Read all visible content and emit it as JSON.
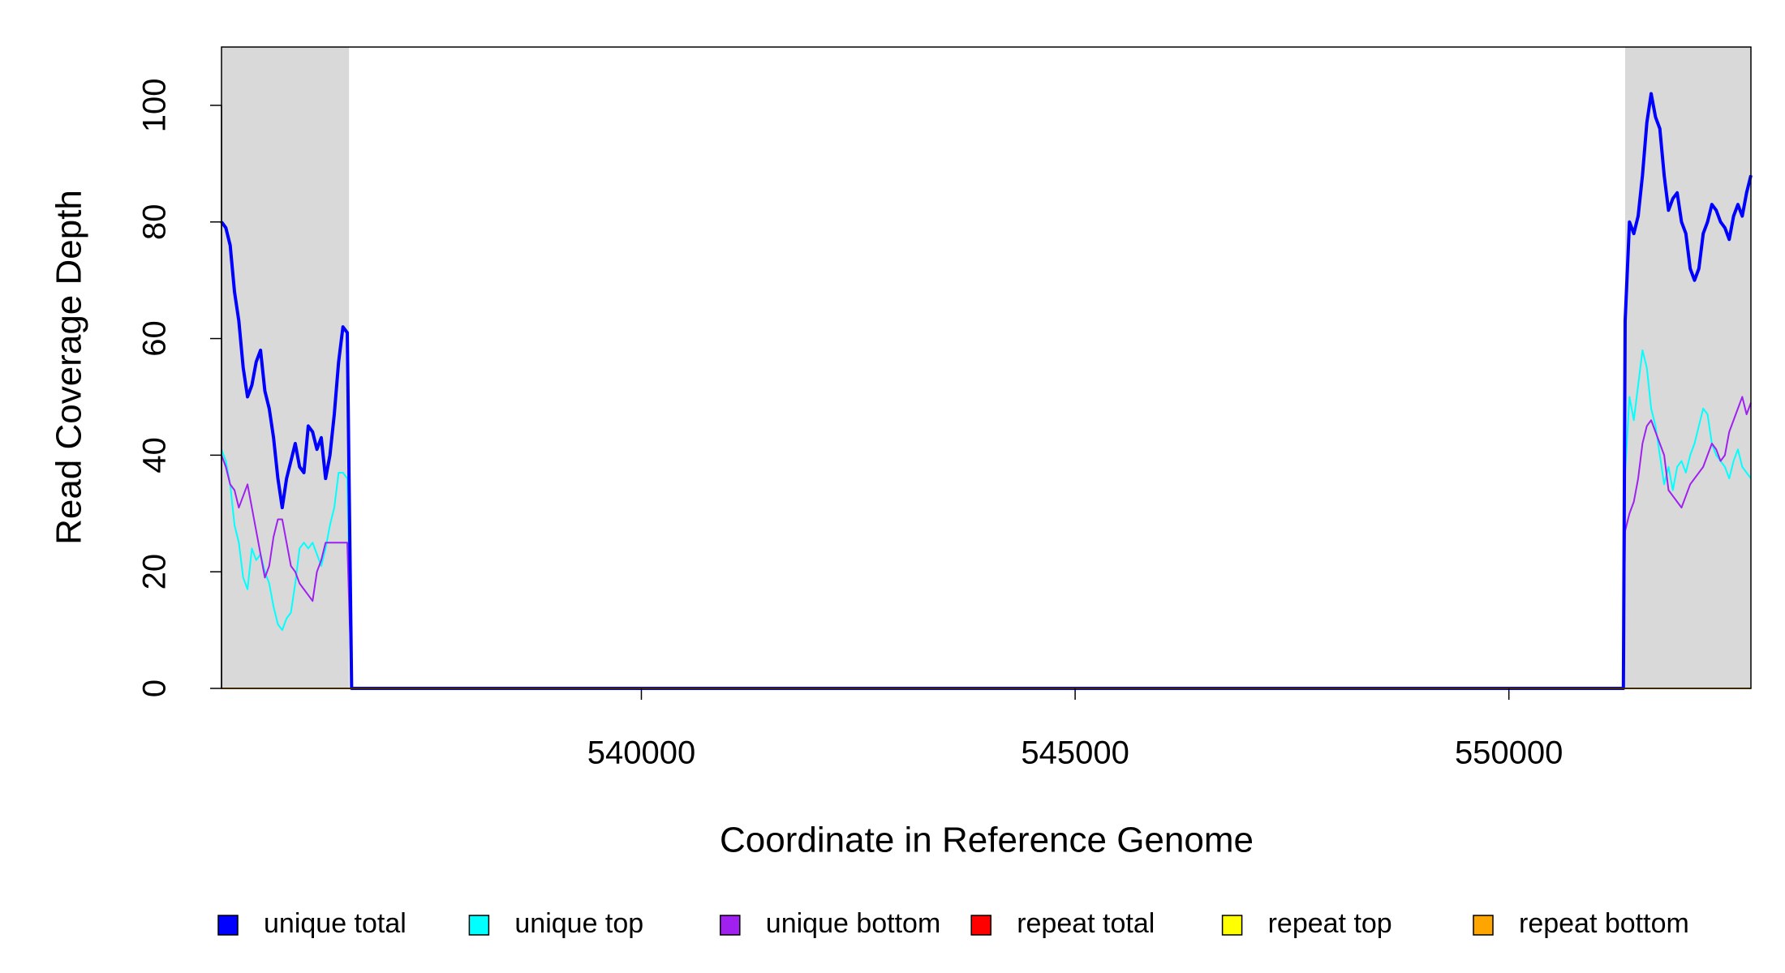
{
  "chart_data": {
    "type": "line",
    "x_label": "Coordinate in Reference Genome",
    "y_label": "Read Coverage Depth",
    "xlim": [
      535160,
      552790
    ],
    "ylim": [
      0,
      110
    ],
    "xticks": [
      540000,
      545000,
      550000
    ],
    "yticks": [
      0,
      20,
      40,
      60,
      80,
      100
    ],
    "shaded_regions": [
      [
        535160,
        536630
      ],
      [
        551340,
        552790
      ]
    ],
    "shade_color": "#d9d9d9",
    "legend": "bottom",
    "x": [
      535160,
      535210,
      535260,
      535310,
      535360,
      535410,
      535460,
      535510,
      535560,
      535610,
      535660,
      535710,
      535760,
      535810,
      535860,
      535910,
      535960,
      536010,
      536060,
      536110,
      536160,
      536210,
      536260,
      536310,
      536360,
      536410,
      536460,
      536510,
      536560,
      536610,
      536660,
      551320,
      551340,
      551390,
      551440,
      551490,
      551540,
      551590,
      551640,
      551690,
      551740,
      551790,
      551840,
      551890,
      551940,
      551990,
      552040,
      552090,
      552140,
      552190,
      552240,
      552290,
      552340,
      552390,
      552440,
      552490,
      552540,
      552590,
      552640,
      552690,
      552740,
      552790
    ],
    "series": [
      {
        "name": "unique total",
        "color": "#0000ff",
        "values": [
          80,
          79,
          76,
          68,
          63,
          55,
          50,
          52,
          56,
          58,
          51,
          48,
          43,
          36,
          31,
          36,
          39,
          42,
          38,
          37,
          45,
          44,
          41,
          43,
          36,
          40,
          47,
          56,
          62,
          61,
          0,
          0,
          63,
          80,
          78,
          81,
          88,
          97,
          102,
          98,
          96,
          88,
          82,
          84,
          85,
          80,
          78,
          72,
          70,
          72,
          78,
          80,
          83,
          82,
          80,
          79,
          77,
          81,
          83,
          81,
          85,
          88
        ]
      },
      {
        "name": "unique top",
        "color": "#00ffff",
        "values": [
          41,
          39,
          35,
          28,
          25,
          19,
          17,
          24,
          22,
          23,
          20,
          18,
          14,
          11,
          10,
          12,
          13,
          18,
          24,
          25,
          24,
          25,
          23,
          21,
          24,
          28,
          31,
          37,
          37,
          36,
          0,
          0,
          37,
          50,
          46,
          52,
          58,
          55,
          48,
          45,
          40,
          35,
          38,
          34,
          38,
          39,
          37,
          40,
          42,
          45,
          48,
          47,
          42,
          40,
          39,
          38,
          36,
          39,
          41,
          38,
          37,
          36
        ]
      },
      {
        "name": "unique bottom",
        "color": "#a020f0",
        "values": [
          40,
          38,
          35,
          34,
          31,
          33,
          35,
          31,
          27,
          23,
          19,
          21,
          26,
          29,
          29,
          25,
          21,
          20,
          18,
          17,
          16,
          15,
          20,
          22,
          25,
          25,
          25,
          25,
          25,
          25,
          0,
          0,
          27,
          30,
          32,
          36,
          42,
          45,
          46,
          44,
          42,
          40,
          34,
          33,
          32,
          31,
          33,
          35,
          36,
          37,
          38,
          40,
          42,
          41,
          39,
          40,
          44,
          46,
          48,
          50,
          47,
          49
        ]
      },
      {
        "name": "repeat total",
        "color": "#ff0000",
        "values": [
          0,
          0,
          0,
          0,
          0,
          0,
          0,
          0,
          0,
          0,
          0,
          0,
          0,
          0,
          0,
          0,
          0,
          0,
          0,
          0,
          0,
          0,
          0,
          0,
          0,
          0,
          0,
          0,
          0,
          0,
          0,
          0,
          0,
          0,
          0,
          0,
          0,
          0,
          0,
          0,
          0,
          0,
          0,
          0,
          0,
          0,
          0,
          0,
          0,
          0,
          0,
          0,
          0,
          0,
          0,
          0,
          0,
          0,
          0,
          0,
          0,
          0
        ]
      },
      {
        "name": "repeat top",
        "color": "#ffff00",
        "values": [
          0,
          0,
          0,
          0,
          0,
          0,
          0,
          0,
          0,
          0,
          0,
          0,
          0,
          0,
          0,
          0,
          0,
          0,
          0,
          0,
          0,
          0,
          0,
          0,
          0,
          0,
          0,
          0,
          0,
          0,
          0,
          0,
          0,
          0,
          0,
          0,
          0,
          0,
          0,
          0,
          0,
          0,
          0,
          0,
          0,
          0,
          0,
          0,
          0,
          0,
          0,
          0,
          0,
          0,
          0,
          0,
          0,
          0,
          0,
          0,
          0,
          0
        ]
      },
      {
        "name": "repeat bottom",
        "color": "#ffa500",
        "values": [
          0,
          0,
          0,
          0,
          0,
          0,
          0,
          0,
          0,
          0,
          0,
          0,
          0,
          0,
          0,
          0,
          0,
          0,
          0,
          0,
          0,
          0,
          0,
          0,
          0,
          0,
          0,
          0,
          0,
          0,
          0,
          0,
          0,
          0,
          0,
          0,
          0,
          0,
          0,
          0,
          0,
          0,
          0,
          0,
          0,
          0,
          0,
          0,
          0,
          0,
          0,
          0,
          0,
          0,
          0,
          0,
          0,
          0,
          0,
          0,
          0,
          0
        ]
      }
    ]
  }
}
